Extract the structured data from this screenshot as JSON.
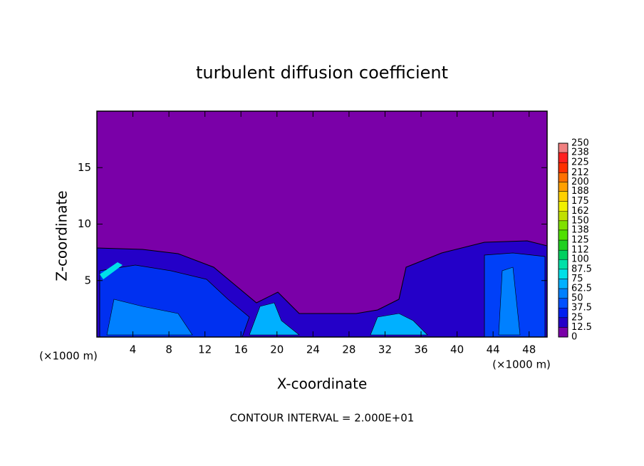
{
  "chart_data": {
    "type": "contour",
    "title": "turbulent diffusion coefficient",
    "x_label": "X-coordinate",
    "y_label": "Z-coordinate",
    "x_unit_labels": [
      "(×1000 m)",
      "(×1000 m)"
    ],
    "footnote": "CONTOUR INTERVAL = 2.000E+01",
    "xlim": [
      0,
      50
    ],
    "xticks": [
      4,
      8,
      12,
      16,
      20,
      24,
      28,
      32,
      36,
      40,
      44,
      48
    ],
    "ylim": [
      0,
      20
    ],
    "yticks": [
      5,
      10,
      15
    ],
    "colorbar": {
      "ticks": [
        0,
        12.5,
        25,
        37.5,
        50,
        62.5,
        75,
        87.5,
        100,
        112,
        125,
        138,
        150,
        162,
        175,
        188,
        200,
        212,
        225,
        238,
        250
      ],
      "colors": [
        "#7a00a8",
        "#2400c8",
        "#0020f0",
        "#0050ff",
        "#0080ff",
        "#00b0ff",
        "#00e0e8",
        "#00e0a8",
        "#00d060",
        "#20d020",
        "#50e000",
        "#80e000",
        "#c0e000",
        "#f0f000",
        "#ffd000",
        "#ffa000",
        "#ff7000",
        "#ff3000",
        "#ff2020",
        "#f08080"
      ]
    }
  }
}
